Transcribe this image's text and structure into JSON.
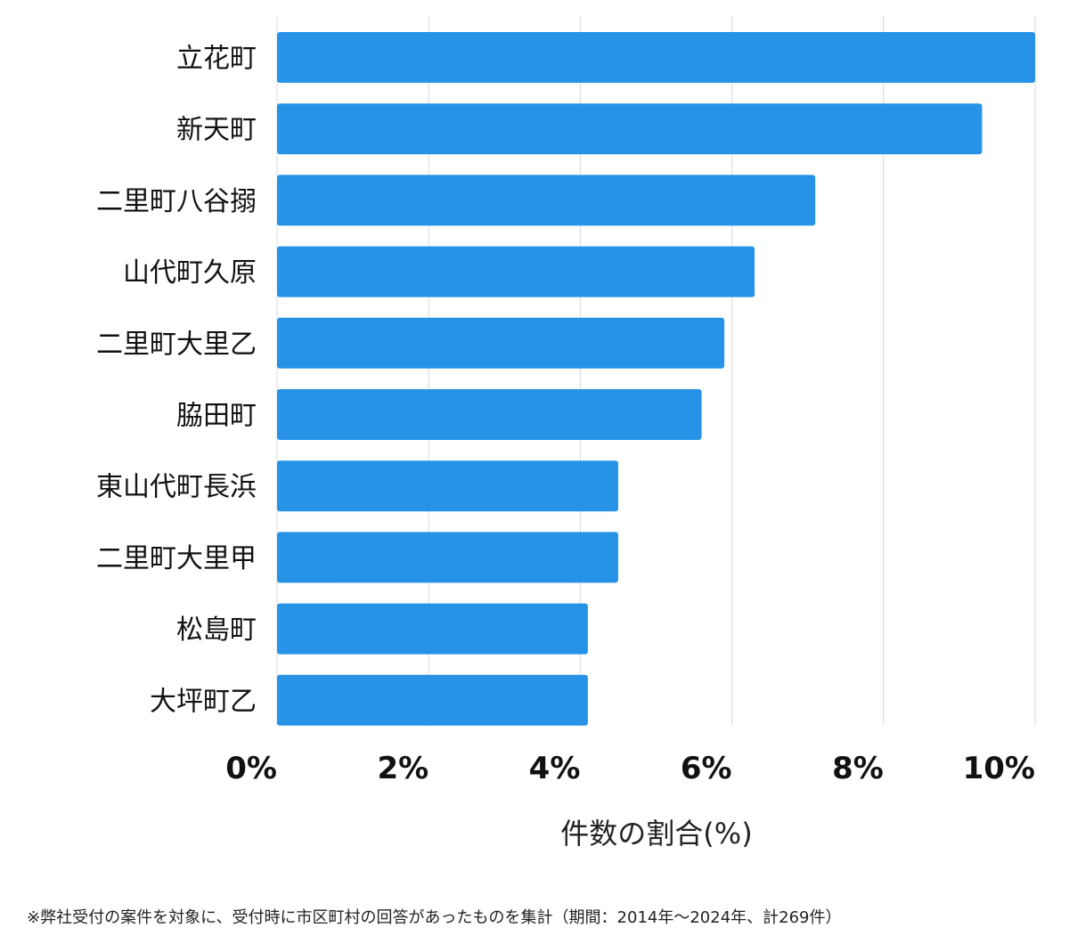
{
  "chart_data": {
    "type": "bar",
    "orientation": "horizontal",
    "categories": [
      "立花町",
      "新天町",
      "二里町八谷搦",
      "山代町久原",
      "二里町大里乙",
      "脇田町",
      "東山代町長浜",
      "二里町大里甲",
      "松島町",
      "大坪町乙"
    ],
    "values": [
      10.0,
      9.3,
      7.1,
      6.3,
      5.9,
      5.6,
      4.5,
      4.5,
      4.1,
      4.1
    ],
    "xlim": [
      0,
      10
    ],
    "xticks": [
      0,
      2,
      4,
      6,
      8,
      10
    ],
    "tick_labels": [
      "0%",
      "2%",
      "4%",
      "6%",
      "8%",
      "10%"
    ],
    "xlabel": "件数の割合(%)",
    "ylabel": "",
    "title": "",
    "grid": true,
    "legend": "none",
    "bar_color": "#2693e6",
    "grid_color": "#d9d9d9"
  },
  "footnote": "※弊社受付の案件を対象に、受付時に市区町村の回答があったものを集計（期間：2014年～2024年、計269件）"
}
